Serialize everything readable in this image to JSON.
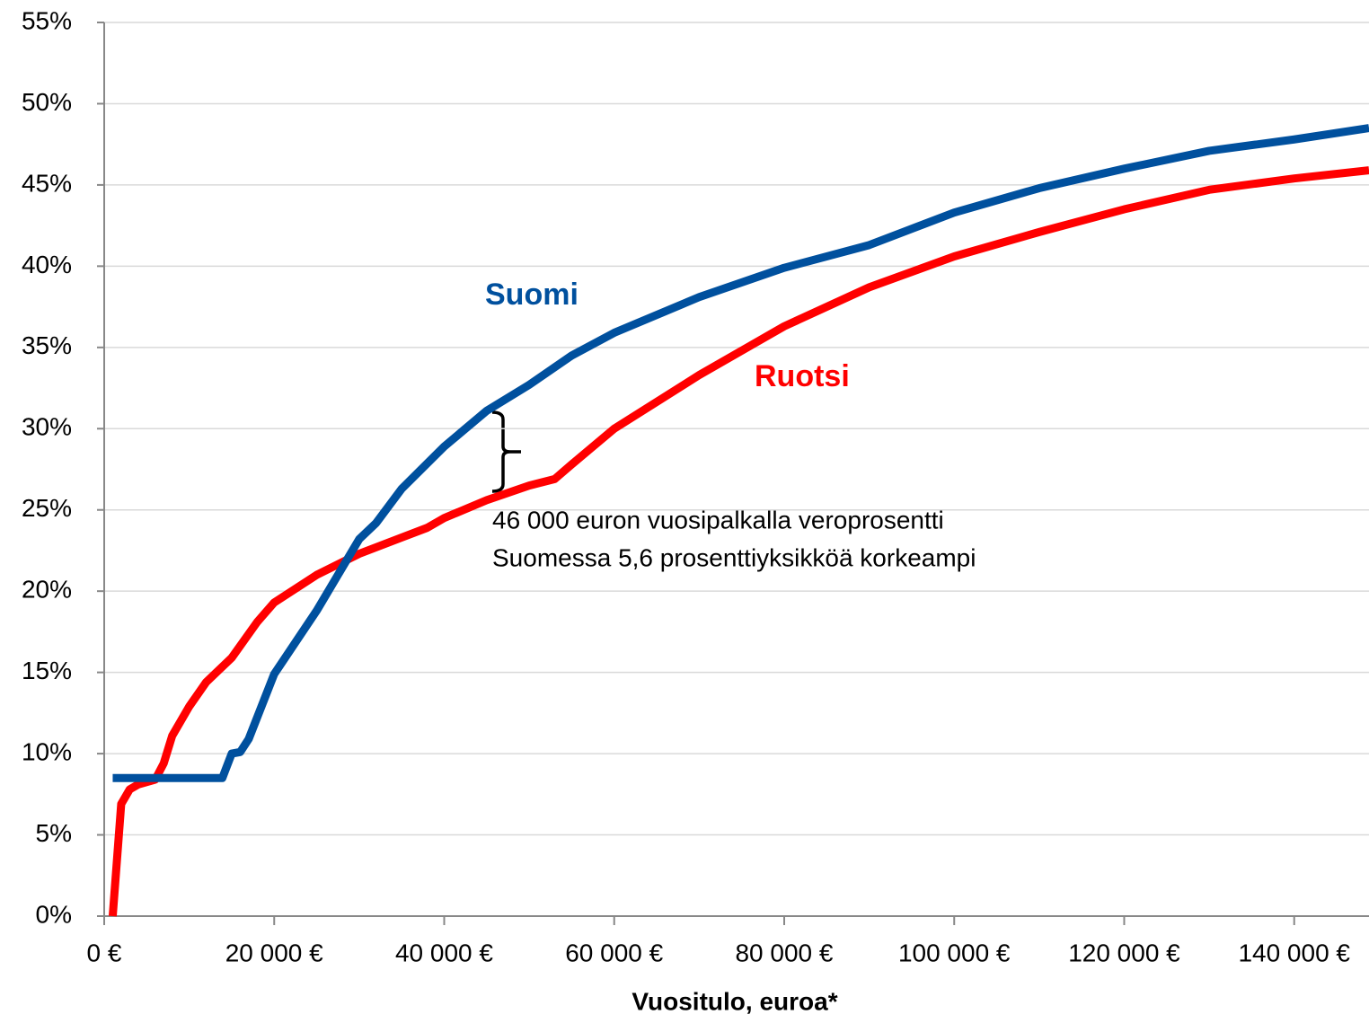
{
  "chart_data": {
    "type": "line",
    "xlabel": "Vuositulo, euroa*",
    "xlim": [
      0,
      148800
    ],
    "ylim": [
      0,
      55
    ],
    "xticks": [
      {
        "value": 0,
        "label": "0 €"
      },
      {
        "value": 20000,
        "label": "20 000 €"
      },
      {
        "value": 40000,
        "label": "40 000 €"
      },
      {
        "value": 60000,
        "label": "60 000 €"
      },
      {
        "value": 80000,
        "label": "80 000 €"
      },
      {
        "value": 100000,
        "label": "100 000 €"
      },
      {
        "value": 120000,
        "label": "120 000 €"
      },
      {
        "value": 140000,
        "label": "140 000 €"
      }
    ],
    "yticks": [
      {
        "value": 0,
        "label": "0%"
      },
      {
        "value": 5,
        "label": "5%"
      },
      {
        "value": 10,
        "label": "10%"
      },
      {
        "value": 15,
        "label": "15%"
      },
      {
        "value": 20,
        "label": "20%"
      },
      {
        "value": 25,
        "label": "25%"
      },
      {
        "value": 30,
        "label": "30%"
      },
      {
        "value": 35,
        "label": "35%"
      },
      {
        "value": 40,
        "label": "40%"
      },
      {
        "value": 45,
        "label": "45%"
      },
      {
        "value": 50,
        "label": "50%"
      },
      {
        "value": 55,
        "label": "55%"
      }
    ],
    "grid": true,
    "series": [
      {
        "name": "Suomi",
        "color": "#00509e",
        "x": [
          1000,
          13900,
          15000,
          16000,
          17000,
          20000,
          25000,
          30000,
          32000,
          35000,
          40000,
          45000,
          50000,
          55000,
          60000,
          70000,
          80000,
          90000,
          100000,
          110000,
          120000,
          130000,
          140000,
          148800
        ],
        "values": [
          8.5,
          8.5,
          10.0,
          10.1,
          10.9,
          14.9,
          18.8,
          23.2,
          24.2,
          26.3,
          28.9,
          31.1,
          32.7,
          34.5,
          35.9,
          38.1,
          39.9,
          41.3,
          43.3,
          44.8,
          46.0,
          47.1,
          47.8,
          48.5
        ]
      },
      {
        "name": "Ruotsi",
        "color": "#ff0000",
        "x": [
          1000,
          2000,
          3000,
          4000,
          6000,
          7000,
          8000,
          10000,
          12000,
          15000,
          18000,
          20000,
          25000,
          30000,
          35000,
          38000,
          40000,
          45000,
          50000,
          53000,
          55000,
          60000,
          70000,
          80000,
          90000,
          100000,
          110000,
          120000,
          130000,
          140000,
          148800
        ],
        "values": [
          0,
          6.9,
          7.8,
          8.1,
          8.4,
          9.4,
          11.1,
          12.9,
          14.4,
          15.9,
          18.1,
          19.3,
          21.0,
          22.3,
          23.3,
          23.9,
          24.5,
          25.6,
          26.5,
          26.9,
          27.8,
          30.0,
          33.3,
          36.3,
          38.7,
          40.6,
          42.1,
          43.5,
          44.7,
          45.4,
          45.9
        ]
      }
    ],
    "annotation": [
      "46 000 euron vuosipalkalla veroprosentti",
      "Suomessa 5,6 prosenttiyksikköä korkeampi"
    ]
  }
}
